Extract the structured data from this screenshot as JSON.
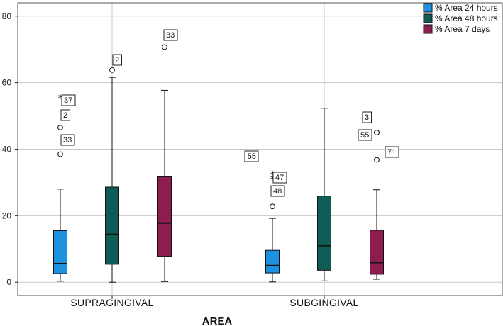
{
  "chart_data": {
    "type": "boxplot",
    "title": "",
    "xlabel": "AREA",
    "ylabel": "",
    "ylim": [
      -4,
      84
    ],
    "yticks": [
      0,
      20,
      40,
      60,
      80
    ],
    "grid": true,
    "legend_position": "top-right",
    "categories": [
      "SUPRAGINGIVAL",
      "SUBGINGIVAL"
    ],
    "series": [
      {
        "name": "% Area 24 hours",
        "color": "#1E90E0",
        "boxes": [
          {
            "min": 0.3,
            "q1": 2.6,
            "median": 5.6,
            "q3": 15.5,
            "max": 28,
            "outliers": [
              {
                "value": 38.5,
                "label": "33",
                "marker": "circle"
              },
              {
                "value": 46.5,
                "label": "2",
                "marker": "circle"
              },
              {
                "value": 55.5,
                "label": "37",
                "marker": "star"
              }
            ]
          },
          {
            "min": 0.1,
            "q1": 2.8,
            "median": 5.0,
            "q3": 9.6,
            "max": 19.2,
            "outliers": [
              {
                "value": 22.8,
                "label": "48",
                "marker": "circle"
              },
              {
                "value": 31.0,
                "label": "47",
                "marker": "star"
              },
              {
                "value": 32.5,
                "label": "55",
                "marker": "star"
              }
            ]
          }
        ]
      },
      {
        "name": "% Area 48 hours",
        "color": "#0F5C57",
        "boxes": [
          {
            "min": 0,
            "q1": 5.4,
            "median": 14.4,
            "q3": 28.6,
            "max": 61.6,
            "outliers": [
              {
                "value": 63.8,
                "label": "2",
                "marker": "circle"
              }
            ]
          },
          {
            "min": 0.4,
            "q1": 3.6,
            "median": 11.0,
            "q3": 25.9,
            "max": 52.3,
            "outliers": []
          }
        ]
      },
      {
        "name": "% Area 7 days",
        "color": "#8E1D4F",
        "boxes": [
          {
            "min": 0.2,
            "q1": 7.8,
            "median": 17.8,
            "q3": 31.7,
            "max": 57.7,
            "outliers": [
              {
                "value": 70.7,
                "label": "33",
                "marker": "circle"
              }
            ]
          },
          {
            "min": 0.9,
            "q1": 2.4,
            "median": 5.9,
            "q3": 15.6,
            "max": 27.8,
            "outliers": [
              {
                "value": 36.8,
                "label": "71",
                "marker": "circle"
              },
              {
                "value": 45.0,
                "label": "55",
                "marker": "circle"
              },
              {
                "value": 45.0,
                "label": "3",
                "marker": "circle"
              }
            ]
          }
        ]
      }
    ]
  }
}
